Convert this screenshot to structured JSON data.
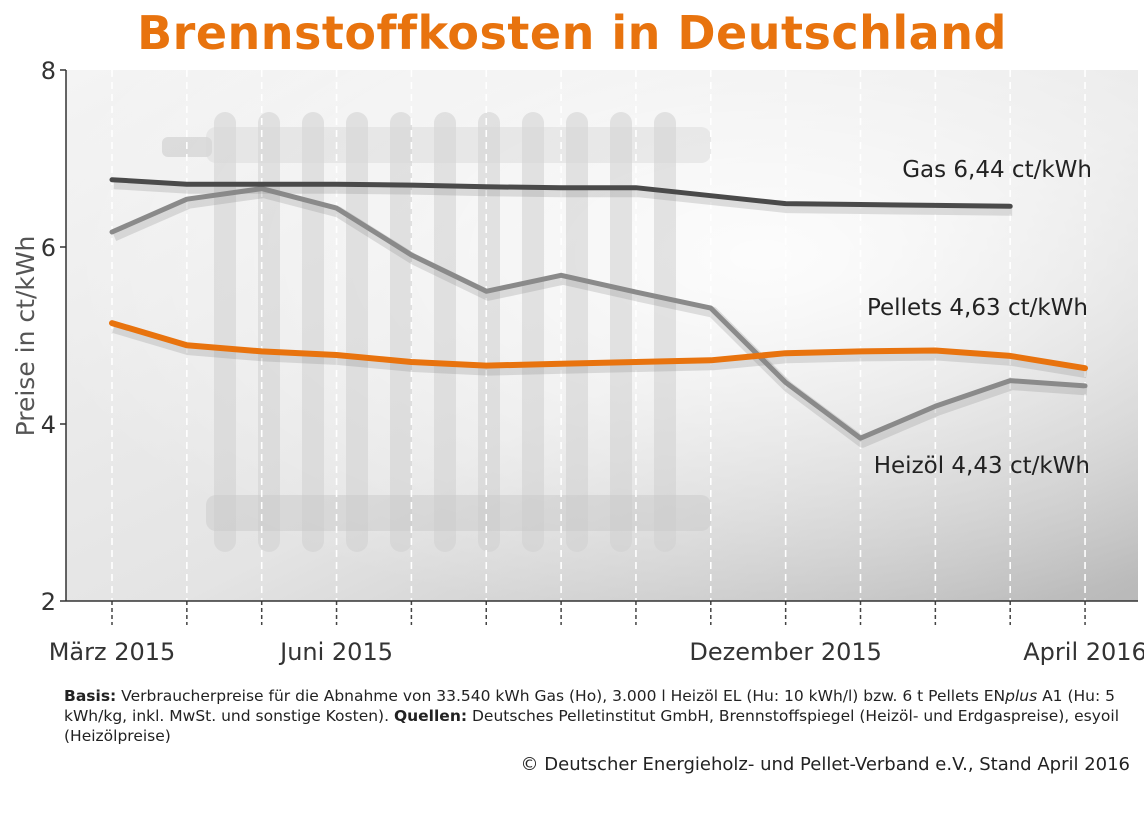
{
  "title": "Brennstoffkosten in Deutschland",
  "footer": {
    "basis_label": "Basis:",
    "basis_text_1": " Verbraucherpreise für die Abnahme von 33.540 kWh Gas (Ho), 3.000 l Heizöl EL (Hu: 10 kWh/l) bzw. 6 t Pellets EN",
    "basis_italic": "plus",
    "basis_text_2": " A1 (Hu: 5 kWh/kg, inkl. MwSt. und sonstige Kosten). ",
    "sources_label": "Quellen:",
    "sources_text": " Deutsches Pelletinstitut GmbH, Brennstoffspiegel (Heizöl- und Erdgaspreise), esyoil (Heizölpreise)",
    "copyright": "© Deutscher Energieholz- und Pellet-Verband e.V., Stand April 2016"
  },
  "colors": {
    "title": "#e8730e",
    "gas": "#4a4a4a",
    "heizoel": "#8a8a8a",
    "pellets": "#e8730e"
  },
  "chart_data": {
    "type": "line",
    "ylabel": "Preise in ct/kWh",
    "ylim": [
      2,
      8
    ],
    "yticks": [
      2,
      4,
      6,
      8
    ],
    "x": [
      "2015-03",
      "2015-04",
      "2015-05",
      "2015-06",
      "2015-07",
      "2015-08",
      "2015-09",
      "2015-10",
      "2015-11",
      "2015-12",
      "2016-01",
      "2016-02",
      "2016-03",
      "2016-04"
    ],
    "x_tick_labels": [
      {
        "at": "2015-03",
        "label": "März 2015"
      },
      {
        "at": "2015-06",
        "label": "Juni 2015"
      },
      {
        "at": "2015-12",
        "label": "Dezember 2015"
      },
      {
        "at": "2016-04",
        "label": "April 2016"
      }
    ],
    "grid": "vertical dashed",
    "series": [
      {
        "name": "Gas",
        "label": "Gas  6,44 ct/kWh",
        "color_key": "gas",
        "values": [
          6.76,
          6.71,
          6.71,
          6.71,
          6.7,
          6.68,
          6.67,
          6.67,
          6.58,
          6.49,
          6.48,
          6.47,
          6.46,
          null
        ]
      },
      {
        "name": "Heizöl",
        "label": "Heizöl 4,43 ct/kWh",
        "color_key": "heizoel",
        "values": [
          6.17,
          6.54,
          6.66,
          6.44,
          5.91,
          5.5,
          5.68,
          5.49,
          5.31,
          4.47,
          3.84,
          4.2,
          4.49,
          4.43
        ]
      },
      {
        "name": "Pellets",
        "label": "Pellets  4,63 ct/kWh",
        "color_key": "pellets",
        "values": [
          5.14,
          4.89,
          4.82,
          4.78,
          4.7,
          4.66,
          4.68,
          4.7,
          4.72,
          4.8,
          4.82,
          4.83,
          4.77,
          4.63
        ]
      }
    ]
  }
}
